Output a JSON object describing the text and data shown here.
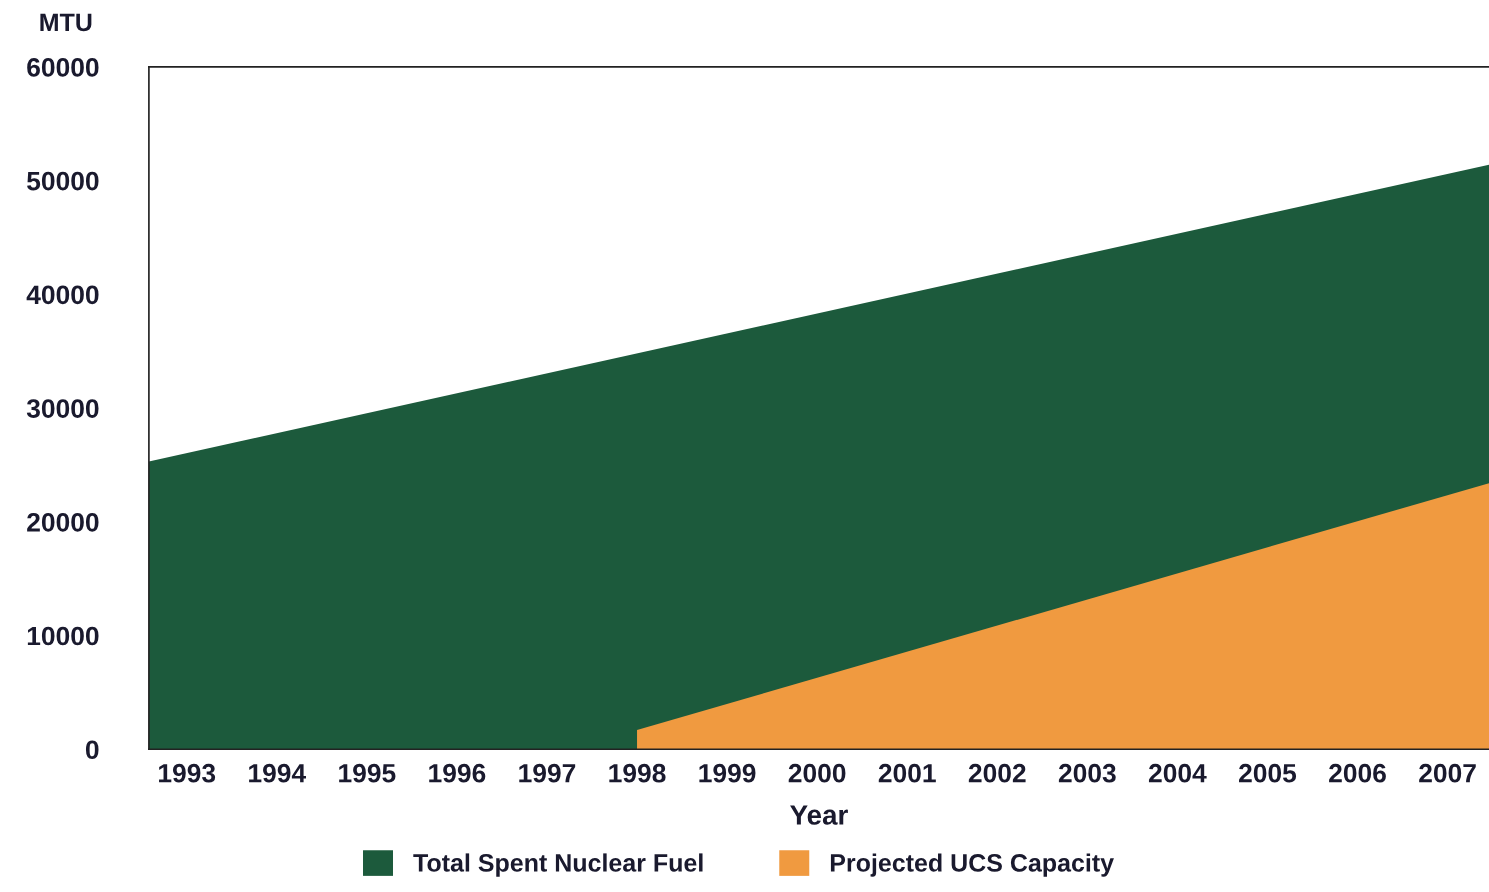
{
  "chart_data": {
    "type": "area",
    "xlabel": "Year",
    "ylabel": "MTU",
    "xlim": [
      1992.58,
      2007.46
    ],
    "xticks": [
      1993,
      1994,
      1995,
      1996,
      1997,
      1998,
      1999,
      2000,
      2001,
      2002,
      2003,
      2004,
      2005,
      2006,
      2007
    ],
    "ylim": [
      0,
      60000
    ],
    "yticks": [
      0,
      10000,
      20000,
      30000,
      40000,
      50000,
      60000
    ],
    "series": [
      {
        "name": "Total Spent Nuclear Fuel",
        "color": "#1c5a3c",
        "x": [
          1992.58,
          2007.46
        ],
        "values": [
          25300,
          51400
        ]
      },
      {
        "name": "Projected UCS Capacity",
        "color": "#f09a40",
        "x": [
          1998,
          2007.46
        ],
        "values": [
          1700,
          23400
        ]
      }
    ],
    "grid": false,
    "legend": "bottom"
  }
}
